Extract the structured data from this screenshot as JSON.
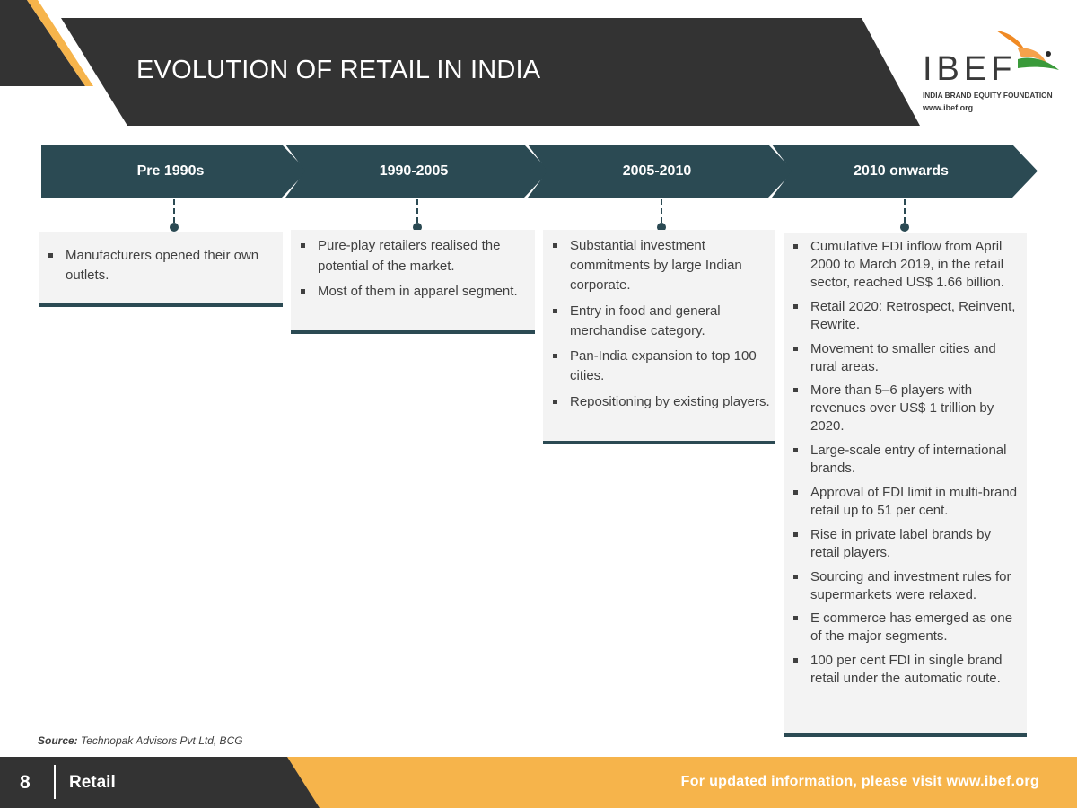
{
  "header": {
    "title": "EVOLUTION OF RETAIL IN INDIA",
    "logo": {
      "word": "IBEF",
      "subtitle": "INDIA BRAND EQUITY FOUNDATION",
      "url": "www.ibef.org"
    }
  },
  "timeline": {
    "periods": [
      {
        "label": "Pre 1990s",
        "points": [
          "Manufacturers opened their own outlets."
        ]
      },
      {
        "label": "1990-2005",
        "points": [
          "Pure-play retailers realised the potential of the market.",
          "Most of them in apparel segment."
        ]
      },
      {
        "label": "2005-2010",
        "points": [
          "Substantial investment commitments by large Indian corporate.",
          "Entry in food and general merchandise category.",
          "Pan-India expansion to top 100 cities.",
          "Repositioning by existing players."
        ]
      },
      {
        "label": "2010 onwards",
        "points": [
          "Cumulative FDI inflow from April 2000 to March 2019, in the retail sector, reached US$ 1.66 billion.",
          "Retail 2020: Retrospect, Reinvent, Rewrite.",
          "Movement to smaller cities and rural areas.",
          "More than 5–6 players with revenues over US$ 1 trillion by 2020.",
          "Large-scale entry of international brands.",
          "Approval of FDI limit in multi-brand retail up to 51 per cent.",
          "Rise in private label brands by retail players.",
          "Sourcing and investment rules for supermarkets were relaxed.",
          "E commerce has emerged as one of the major segments.",
          "100 per cent FDI in single brand retail under the automatic route."
        ]
      }
    ]
  },
  "source": {
    "label": "Source:",
    "text": "Technopak Advisors Pvt Ltd, BCG"
  },
  "footer": {
    "page_number": "8",
    "section": "Retail",
    "update_text": "For updated information, please visit www.ibef.org"
  },
  "colors": {
    "dark": "#333333",
    "teal": "#2b4a53",
    "orange": "#f6b44b",
    "box_bg": "#f3f3f3"
  }
}
